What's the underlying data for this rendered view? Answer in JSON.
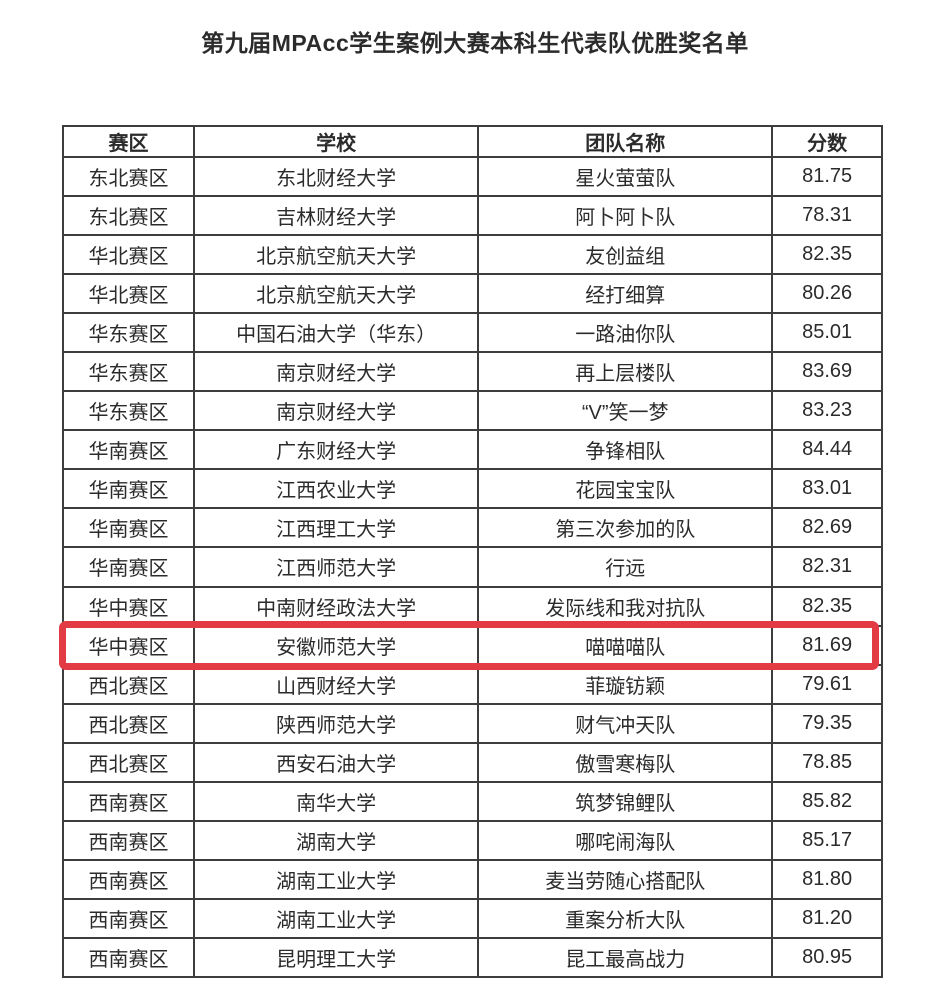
{
  "page": {
    "title": "第九届MPAcc学生案例大赛本科生代表队优胜奖名单"
  },
  "table": {
    "columns": [
      "赛区",
      "学校",
      "团队名称",
      "分数"
    ],
    "rows": [
      [
        "东北赛区",
        "东北财经大学",
        "星火萤萤队",
        "81.75"
      ],
      [
        "东北赛区",
        "吉林财经大学",
        "阿卜阿卜队",
        "78.31"
      ],
      [
        "华北赛区",
        "北京航空航天大学",
        "友创益组",
        "82.35"
      ],
      [
        "华北赛区",
        "北京航空航天大学",
        "经打细算",
        "80.26"
      ],
      [
        "华东赛区",
        "中国石油大学（华东）",
        "一路油你队",
        "85.01"
      ],
      [
        "华东赛区",
        "南京财经大学",
        "再上层楼队",
        "83.69"
      ],
      [
        "华东赛区",
        "南京财经大学",
        "“V”笑一梦",
        "83.23"
      ],
      [
        "华南赛区",
        "广东财经大学",
        "争锋相队",
        "84.44"
      ],
      [
        "华南赛区",
        "江西农业大学",
        "花园宝宝队",
        "83.01"
      ],
      [
        "华南赛区",
        "江西理工大学",
        "第三次参加的队",
        "82.69"
      ],
      [
        "华南赛区",
        "江西师范大学",
        "行远",
        "82.31"
      ],
      [
        "华中赛区",
        "中南财经政法大学",
        "发际线和我对抗队",
        "82.35"
      ],
      [
        "华中赛区",
        "安徽师范大学",
        "喵喵喵队",
        "81.69"
      ],
      [
        "西北赛区",
        "山西财经大学",
        "菲璇钫颖",
        "79.61"
      ],
      [
        "西北赛区",
        "陕西师范大学",
        "财气冲天队",
        "79.35"
      ],
      [
        "西北赛区",
        "西安石油大学",
        "傲雪寒梅队",
        "78.85"
      ],
      [
        "西南赛区",
        "南华大学",
        "筑梦锦鲤队",
        "85.82"
      ],
      [
        "西南赛区",
        "湖南大学",
        "哪咤闹海队",
        "85.17"
      ],
      [
        "西南赛区",
        "湖南工业大学",
        "麦当劳随心搭配队",
        "81.80"
      ],
      [
        "西南赛区",
        "湖南工业大学",
        "重案分析大队",
        "81.20"
      ],
      [
        "西南赛区",
        "昆明理工大学",
        "昆工最高战力",
        "80.95"
      ]
    ],
    "highlight": {
      "row_index": 12,
      "color": "#e23b44"
    }
  },
  "colors": {
    "border": "#3d3d3d",
    "text": "#2b2b2b",
    "highlight": "#e23b44",
    "background": "#ffffff"
  }
}
